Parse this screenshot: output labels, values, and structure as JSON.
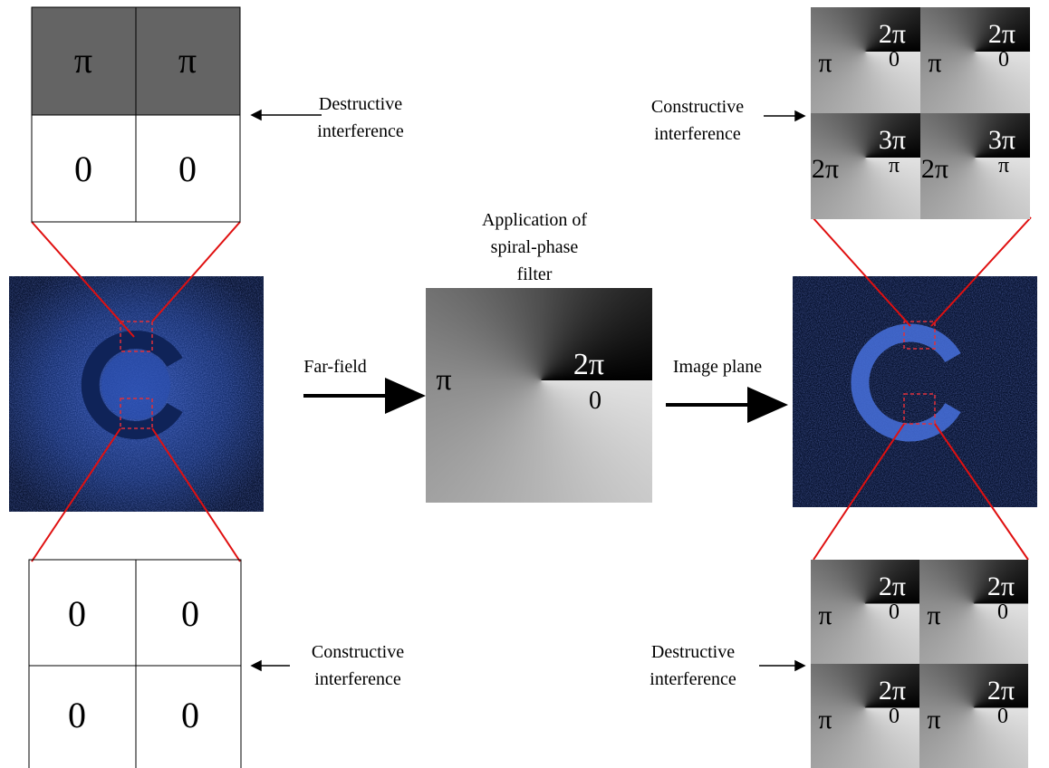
{
  "left_top": {
    "cells": [
      "π",
      "π",
      "0",
      "0"
    ],
    "label": [
      "Destructive",
      "interference"
    ]
  },
  "left_bottom": {
    "cells": [
      "0",
      "0",
      "0",
      "0"
    ],
    "label": [
      "Constructive",
      "interference"
    ]
  },
  "far_field": "Far-field",
  "filter": {
    "caption": [
      "Application of",
      "spiral-phase",
      "filter"
    ],
    "left": "π",
    "top": "2π",
    "bottom": "0"
  },
  "image_plane": "Image plane",
  "right_top": {
    "tiles": [
      {
        "left": "π",
        "top": "2π",
        "bottom": "0"
      },
      {
        "left": "π",
        "top": "2π",
        "bottom": "0"
      },
      {
        "left": "2π",
        "top": "3π",
        "bottom": "π"
      },
      {
        "left": "2π",
        "top": "3π",
        "bottom": "π"
      }
    ],
    "label": [
      "Constructive",
      "interference"
    ]
  },
  "right_bottom": {
    "tiles": [
      {
        "left": "π",
        "top": "2π",
        "bottom": "0"
      },
      {
        "left": "π",
        "top": "2π",
        "bottom": "0"
      },
      {
        "left": "π",
        "top": "2π",
        "bottom": "0"
      },
      {
        "left": "π",
        "top": "2π",
        "bottom": "0"
      }
    ],
    "label": [
      "Destructive",
      "interference"
    ]
  }
}
